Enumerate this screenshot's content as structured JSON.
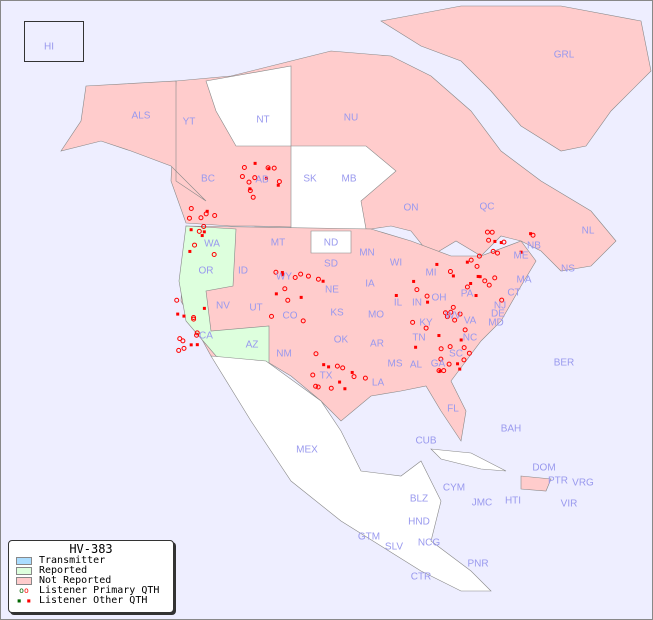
{
  "legend": {
    "title": "HV-383",
    "items": [
      {
        "label": "Transmitter",
        "color": "#aaddff"
      },
      {
        "label": "Reported",
        "color": "#ddffdd"
      },
      {
        "label": "Not Reported",
        "color": "#ffcccc"
      },
      {
        "label": "Listener Primary QTH",
        "icon": "open-circle"
      },
      {
        "label": "Listener Other QTH",
        "icon": "filled-square"
      }
    ]
  },
  "colors": {
    "water": "#eeeeff",
    "not_reported": "#ffcccc",
    "reported": "#ddffdd",
    "no_data": "#ffffff",
    "label": "#9999ee",
    "marker": "#ff0000"
  },
  "regions": [
    "HI",
    "ALS",
    "YT",
    "NT",
    "NU",
    "GRL",
    "BC",
    "AB",
    "SK",
    "MB",
    "ON",
    "QC",
    "NL",
    "NS",
    "NB",
    "WA",
    "OR",
    "ID",
    "MT",
    "ND",
    "MN",
    "WI",
    "MI",
    "ME",
    "MA",
    "CT",
    "NJ",
    "DE",
    "MD",
    "PA",
    "OH",
    "IN",
    "IL",
    "IA",
    "NE",
    "SD",
    "WY",
    "NV",
    "UT",
    "CO",
    "KS",
    "MO",
    "KY",
    "WV",
    "VA",
    "TN",
    "NC",
    "SC",
    "GA",
    "AL",
    "MS",
    "LA",
    "AR",
    "OK",
    "TX",
    "NM",
    "AZ",
    "CA",
    "FL",
    "MEX",
    "CUB",
    "BAH",
    "DOM",
    "PTR",
    "VRG",
    "CYM",
    "JMC",
    "HTI",
    "VIR",
    "BLZ",
    "GTM",
    "HND",
    "SLV",
    "NCG",
    "CTR",
    "PNR",
    "BER"
  ]
}
